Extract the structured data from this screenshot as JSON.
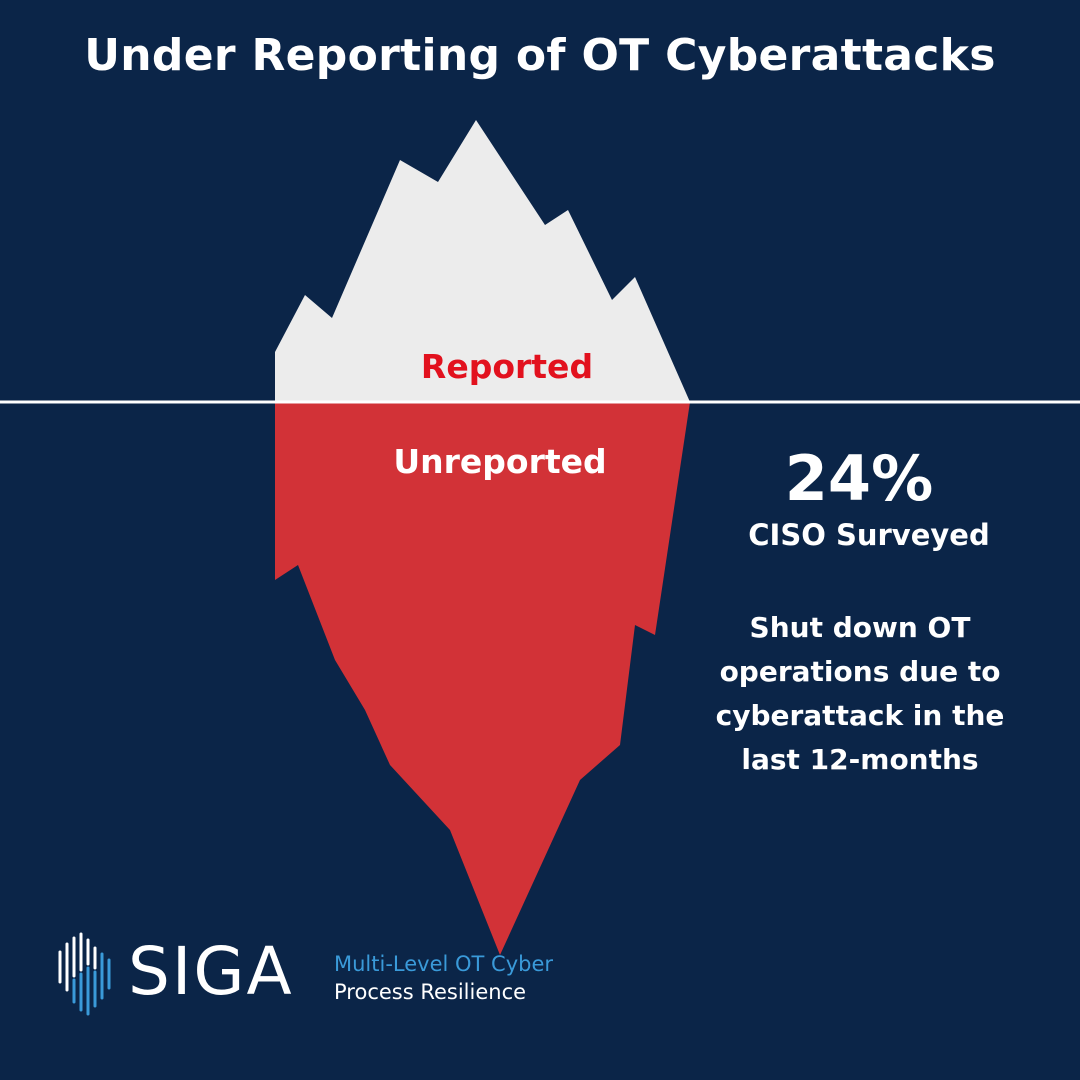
{
  "title": "Under Reporting of OT Cyberattacks",
  "iceberg": {
    "above_label": "Reported",
    "below_label": "Unreported"
  },
  "stat": {
    "value": "24%",
    "subtitle": "CISO Surveyed",
    "description_lines": [
      "Shut down OT",
      "operations due to",
      "cyberattack in the",
      "last 12-months"
    ]
  },
  "logo": {
    "name": "SIGA",
    "tagline_line1": "Multi-Level OT Cyber",
    "tagline_line2": "Process Resilience"
  },
  "colors": {
    "background": "#0b2548",
    "iceberg_top": "#ececec",
    "iceberg_bottom": "#d23237",
    "reported_text": "#e2111e",
    "tagline_blue": "#3a9ad9"
  }
}
